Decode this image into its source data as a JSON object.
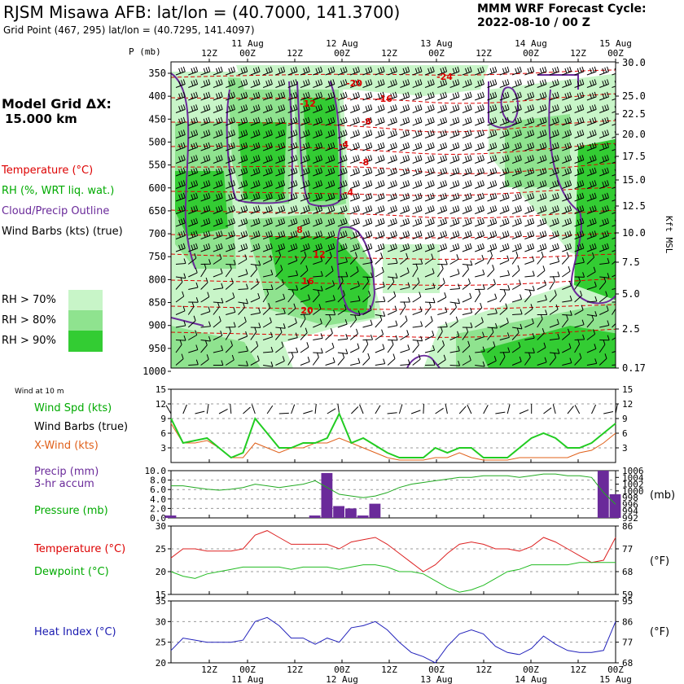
{
  "header": {
    "title": "RJSM Misawa AFB:  lat/lon = (40.7000, 141.3700)",
    "subtitle": "Grid Point (467, 295) lat/lon = (40.7295, 141.4097)",
    "cycle_label": "MMM WRF Forecast Cycle:",
    "cycle_value": "2022-08-10 / 00  Z"
  },
  "left_panel": {
    "model_grid_label": "Model Grid ΔX:",
    "model_grid_value": "15.000 km",
    "legend": [
      {
        "text": "Temperature (°C)",
        "color": "#dd0000"
      },
      {
        "text": "RH (%, WRT liq. wat.)",
        "color": "#00aa00"
      },
      {
        "text": "Cloud/Precip Outline",
        "color": "#6a2a9a"
      },
      {
        "text": "Wind Barbs (kts) (true)",
        "color": "#000000"
      }
    ],
    "rh_legend": [
      {
        "text": "RH > 70%",
        "color": "#c8f5c8"
      },
      {
        "text": "RH > 80%",
        "color": "#8fe38f"
      },
      {
        "text": "RH > 90%",
        "color": "#33cc33"
      }
    ]
  },
  "colors": {
    "temperature": "#dd0000",
    "rh": "#00aa00",
    "cloud": "#6a2a9a",
    "xwind": "#e0601a",
    "heat_index": "#1a1ab0",
    "precip_bar": "#6a2a9a"
  },
  "chart_data": [
    {
      "type": "heatmap",
      "name": "upper-air cross section",
      "time_ticks": [
        "12Z",
        "00Z",
        "12Z",
        "00Z",
        "12Z",
        "00Z",
        "12Z",
        "00Z",
        "12Z",
        "00Z"
      ],
      "date_labels": [
        "11 Aug",
        "12 Aug",
        "13 Aug",
        "14 Aug",
        "15 Aug"
      ],
      "ylabel_left": "P (mb)",
      "ylabel_right": "Kft MSL",
      "pressure_levels": [
        350,
        400,
        450,
        500,
        550,
        600,
        650,
        700,
        750,
        800,
        850,
        900,
        950,
        1000
      ],
      "height_kft": [
        "30.0",
        "25.0",
        "22.5",
        "20.0",
        "17.5",
        "15.0",
        "12.5",
        "10.0",
        "7.5",
        "5.0",
        "2.5",
        "0.17"
      ],
      "temperature_labels": [
        "-24",
        "-20",
        "-16",
        "-12",
        "-8",
        "-8",
        "-4",
        "-4",
        "8",
        "12",
        "16",
        "20"
      ]
    },
    {
      "type": "line",
      "name": "10 m wind",
      "title": "Wind at 10 m",
      "legend": [
        "Wind Spd (kts)",
        "Wind Barbs (true)",
        "X-Wind (kts)"
      ],
      "ylim": [
        0,
        15
      ],
      "y_ticks": [
        3,
        6,
        9,
        12,
        15
      ],
      "series": [
        {
          "name": "Wind Spd (kts)",
          "values": [
            9,
            4,
            4.5,
            5,
            3,
            1,
            2,
            9,
            6,
            3,
            3,
            4,
            4,
            5,
            10,
            4,
            5,
            3.5,
            2,
            1,
            1,
            1,
            3,
            2,
            3,
            3,
            1,
            1,
            1,
            3,
            5,
            6,
            5,
            3,
            3,
            4,
            6,
            8
          ]
        },
        {
          "name": "X-Wind (kts)",
          "values": [
            8,
            4,
            4,
            4.5,
            3,
            1,
            1,
            4,
            3,
            2,
            3,
            3,
            4,
            4,
            5,
            4,
            3,
            2,
            1,
            0.5,
            0.5,
            0.5,
            1,
            1,
            2,
            1,
            0.5,
            0.5,
            0.5,
            1,
            1,
            1,
            1,
            1,
            2,
            2.5,
            4,
            6
          ]
        }
      ]
    },
    {
      "type": "bar",
      "name": "precipitation and pressure",
      "legend": [
        "Precip (mm)",
        "3-hr accum",
        "Pressure (mb)"
      ],
      "ylim_left": [
        0,
        10
      ],
      "y_ticks_left": [
        "0.0",
        "2.0",
        "4.0",
        "6.0",
        "8.0",
        "10.0"
      ],
      "y_ticks_right": [
        "992",
        "994",
        "996",
        "998",
        "1000",
        "1002",
        "1004",
        "1006"
      ],
      "ylabel_right": "(mb)",
      "precip_values": [
        0.5,
        0,
        0,
        0,
        0,
        0,
        0,
        0,
        0,
        0,
        0,
        0,
        0.5,
        9.5,
        2.5,
        2,
        0.5,
        3,
        0,
        0,
        0,
        0,
        0,
        0,
        0,
        0,
        0,
        0,
        0,
        0,
        0,
        0,
        0,
        0,
        0,
        0,
        10,
        5
      ],
      "pressure_values": [
        1001.5,
        1001.5,
        1001,
        1000.5,
        1000.2,
        1000.5,
        1001,
        1002,
        1001.5,
        1001,
        1001.5,
        1002,
        1003,
        1001,
        999,
        998.5,
        998,
        998.5,
        999.5,
        1001,
        1002,
        1002.5,
        1003,
        1003.5,
        1004,
        1004,
        1004.5,
        1004.5,
        1004.5,
        1004,
        1004.5,
        1005,
        1005,
        1004.5,
        1004.5,
        1004,
        999.5,
        996
      ]
    },
    {
      "type": "line",
      "name": "temperature and dewpoint",
      "legend": [
        "Temperature (°C)",
        "Dewpoint (°C)"
      ],
      "ylim": [
        15,
        30
      ],
      "y_ticks_left": [
        "15",
        "20",
        "25",
        "30"
      ],
      "y_ticks_right": [
        "59",
        "68",
        "77",
        "86"
      ],
      "ylabel_right": "(°F)",
      "series": [
        {
          "name": "Temperature (°C)",
          "values": [
            23,
            25,
            25,
            24.5,
            24.5,
            24.5,
            25,
            28,
            29,
            27.5,
            26,
            26,
            26,
            26,
            25,
            26.5,
            27,
            27.5,
            26,
            24,
            22,
            20,
            21.5,
            24,
            26,
            26.5,
            26,
            25,
            25,
            24.5,
            25.5,
            27.5,
            26.5,
            25,
            23.5,
            22,
            22.5,
            27.5
          ]
        },
        {
          "name": "Dewpoint (°C)",
          "values": [
            20,
            19,
            18.5,
            19.5,
            20,
            20.5,
            21,
            21,
            21,
            21,
            20.5,
            21,
            21,
            21,
            20.5,
            21,
            21.5,
            21.5,
            21,
            20,
            20,
            19.5,
            18,
            16.5,
            15.5,
            16,
            17,
            18.5,
            20,
            20.5,
            21.5,
            21.5,
            21.5,
            21.5,
            22,
            22,
            22,
            22
          ]
        }
      ]
    },
    {
      "type": "line",
      "name": "heat index",
      "legend": [
        "Heat Index (°C)"
      ],
      "ylim": [
        20,
        35
      ],
      "y_ticks_left": [
        "20",
        "25",
        "30",
        "35"
      ],
      "y_ticks_right": [
        "68",
        "77",
        "86",
        "95"
      ],
      "ylabel_right": "(°F)",
      "series": [
        {
          "name": "Heat Index (°C)",
          "values": [
            23,
            26,
            25.5,
            25,
            25,
            25,
            25.5,
            30,
            31,
            29,
            26,
            26,
            24.5,
            26,
            25,
            28.5,
            29,
            30,
            28,
            25,
            22.5,
            21.5,
            20,
            24,
            27,
            28,
            27,
            24,
            22.5,
            22,
            23.5,
            26.5,
            24.5,
            23,
            22.5,
            22.5,
            23,
            30
          ]
        }
      ]
    }
  ]
}
